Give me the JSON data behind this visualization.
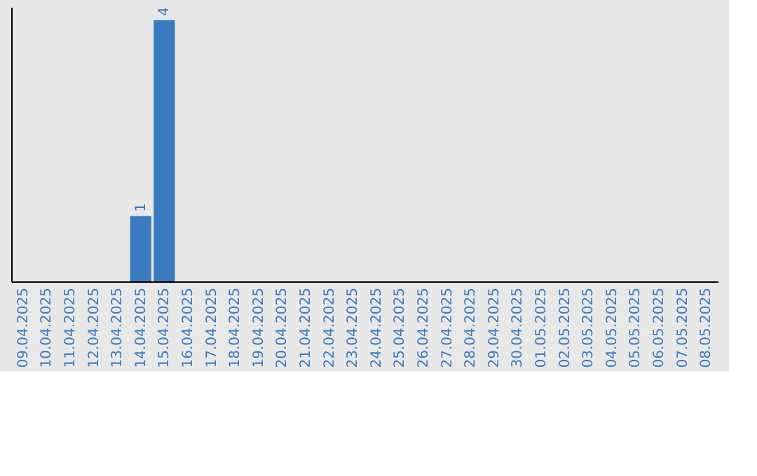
{
  "chart_data": {
    "type": "bar",
    "categories": [
      "09.04.2025",
      "10.04.2025",
      "11.04.2025",
      "12.04.2025",
      "13.04.2025",
      "14.04.2025",
      "15.04.2025",
      "16.04.2025",
      "17.04.2025",
      "18.04.2025",
      "19.04.2025",
      "20.04.2025",
      "21.04.2025",
      "22.04.2025",
      "23.04.2025",
      "24.04.2025",
      "25.04.2025",
      "26.04.2025",
      "27.04.2025",
      "28.04.2025",
      "29.04.2025",
      "30.04.2025",
      "01.05.2025",
      "02.05.2025",
      "03.05.2025",
      "04.05.2025",
      "05.05.2025",
      "06.05.2025",
      "07.05.2025",
      "08.05.2025"
    ],
    "values": [
      0,
      0,
      0,
      0,
      0,
      1,
      4,
      0,
      0,
      0,
      0,
      0,
      0,
      0,
      0,
      0,
      0,
      0,
      0,
      0,
      0,
      0,
      0,
      0,
      0,
      0,
      0,
      0,
      0,
      0
    ],
    "value_labels": [
      null,
      null,
      null,
      null,
      null,
      "1",
      "4",
      null,
      null,
      null,
      null,
      null,
      null,
      null,
      null,
      null,
      null,
      null,
      null,
      null,
      null,
      null,
      null,
      null,
      null,
      null,
      null,
      null,
      null,
      null
    ],
    "color": "#3a7bbf",
    "grid": false
  }
}
